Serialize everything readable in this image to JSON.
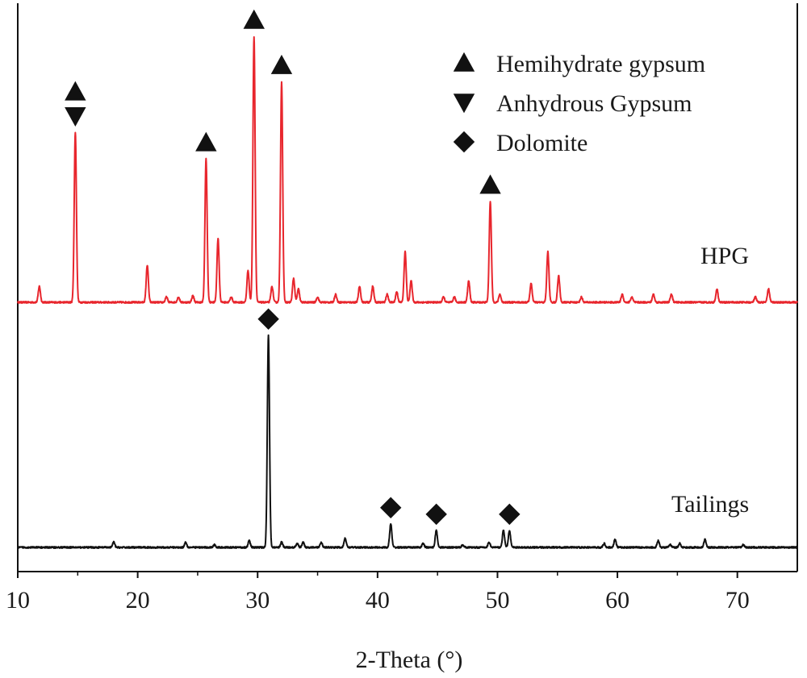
{
  "chart_data": {
    "type": "line",
    "title": "",
    "xlabel": "2-Theta (°)",
    "ylabel": "",
    "xlim": [
      10,
      75
    ],
    "xticks": [
      10,
      20,
      30,
      40,
      50,
      60,
      70
    ],
    "legend": {
      "placement": "top-right",
      "entries": [
        {
          "label": "Hemihydrate gypsum",
          "marker": "triangle-up"
        },
        {
          "label": "Anhydrous Gypsum",
          "marker": "triangle-down"
        },
        {
          "label": "Dolomite",
          "marker": "diamond"
        }
      ]
    },
    "series": [
      {
        "name": "HPG",
        "color": "#e8262d",
        "baseline": 0.05,
        "peaks": [
          {
            "x": 11.8,
            "h": 0.06
          },
          {
            "x": 14.8,
            "h": 0.64
          },
          {
            "x": 20.8,
            "h": 0.14
          },
          {
            "x": 22.4,
            "h": 0.02
          },
          {
            "x": 23.4,
            "h": 0.02
          },
          {
            "x": 24.6,
            "h": 0.025
          },
          {
            "x": 25.7,
            "h": 0.54
          },
          {
            "x": 26.7,
            "h": 0.24
          },
          {
            "x": 27.8,
            "h": 0.02
          },
          {
            "x": 29.2,
            "h": 0.12
          },
          {
            "x": 29.7,
            "h": 1.0
          },
          {
            "x": 31.2,
            "h": 0.06
          },
          {
            "x": 32.0,
            "h": 0.83
          },
          {
            "x": 33.0,
            "h": 0.09
          },
          {
            "x": 33.4,
            "h": 0.05
          },
          {
            "x": 35.0,
            "h": 0.02
          },
          {
            "x": 36.5,
            "h": 0.03
          },
          {
            "x": 38.5,
            "h": 0.06
          },
          {
            "x": 39.6,
            "h": 0.06
          },
          {
            "x": 40.8,
            "h": 0.03
          },
          {
            "x": 41.6,
            "h": 0.04
          },
          {
            "x": 42.3,
            "h": 0.19
          },
          {
            "x": 42.8,
            "h": 0.08
          },
          {
            "x": 45.5,
            "h": 0.02
          },
          {
            "x": 46.4,
            "h": 0.02
          },
          {
            "x": 47.6,
            "h": 0.08
          },
          {
            "x": 49.4,
            "h": 0.38
          },
          {
            "x": 50.2,
            "h": 0.03
          },
          {
            "x": 52.8,
            "h": 0.07
          },
          {
            "x": 54.2,
            "h": 0.19
          },
          {
            "x": 55.1,
            "h": 0.1
          },
          {
            "x": 57.0,
            "h": 0.02
          },
          {
            "x": 60.4,
            "h": 0.03
          },
          {
            "x": 61.2,
            "h": 0.02
          },
          {
            "x": 63.0,
            "h": 0.03
          },
          {
            "x": 64.5,
            "h": 0.03
          },
          {
            "x": 68.3,
            "h": 0.05
          },
          {
            "x": 71.5,
            "h": 0.02
          },
          {
            "x": 72.6,
            "h": 0.05
          }
        ]
      },
      {
        "name": "Tailings",
        "color": "#111111",
        "baseline": 0.0,
        "peaks": [
          {
            "x": 18.0,
            "h": 0.02
          },
          {
            "x": 24.0,
            "h": 0.02
          },
          {
            "x": 26.4,
            "h": 0.01
          },
          {
            "x": 29.3,
            "h": 0.025
          },
          {
            "x": 30.9,
            "h": 0.81
          },
          {
            "x": 32.0,
            "h": 0.02
          },
          {
            "x": 33.3,
            "h": 0.015
          },
          {
            "x": 33.8,
            "h": 0.02
          },
          {
            "x": 35.3,
            "h": 0.02
          },
          {
            "x": 37.3,
            "h": 0.035
          },
          {
            "x": 41.1,
            "h": 0.09
          },
          {
            "x": 43.8,
            "h": 0.015
          },
          {
            "x": 44.9,
            "h": 0.065
          },
          {
            "x": 47.1,
            "h": 0.01
          },
          {
            "x": 49.3,
            "h": 0.02
          },
          {
            "x": 50.5,
            "h": 0.065
          },
          {
            "x": 51.0,
            "h": 0.065
          },
          {
            "x": 58.9,
            "h": 0.015
          },
          {
            "x": 59.8,
            "h": 0.03
          },
          {
            "x": 63.4,
            "h": 0.025
          },
          {
            "x": 64.4,
            "h": 0.01
          },
          {
            "x": 65.2,
            "h": 0.015
          },
          {
            "x": 67.3,
            "h": 0.03
          },
          {
            "x": 70.5,
            "h": 0.01
          }
        ]
      }
    ],
    "series_labels": [
      "HPG",
      "Tailings"
    ],
    "peak_markers": [
      {
        "series": "HPG",
        "x": 14.8,
        "markers": [
          "triangle-up",
          "triangle-down"
        ]
      },
      {
        "series": "HPG",
        "x": 25.7,
        "markers": [
          "triangle-up"
        ]
      },
      {
        "series": "HPG",
        "x": 29.7,
        "markers": [
          "triangle-up"
        ]
      },
      {
        "series": "HPG",
        "x": 32.0,
        "markers": [
          "triangle-up"
        ]
      },
      {
        "series": "HPG",
        "x": 49.4,
        "markers": [
          "triangle-up"
        ]
      },
      {
        "series": "Tailings",
        "x": 30.9,
        "markers": [
          "diamond"
        ]
      },
      {
        "series": "Tailings",
        "x": 41.1,
        "markers": [
          "diamond"
        ]
      },
      {
        "series": "Tailings",
        "x": 44.9,
        "markers": [
          "diamond"
        ]
      },
      {
        "series": "Tailings",
        "x": 51.0,
        "markers": [
          "diamond"
        ]
      }
    ]
  }
}
